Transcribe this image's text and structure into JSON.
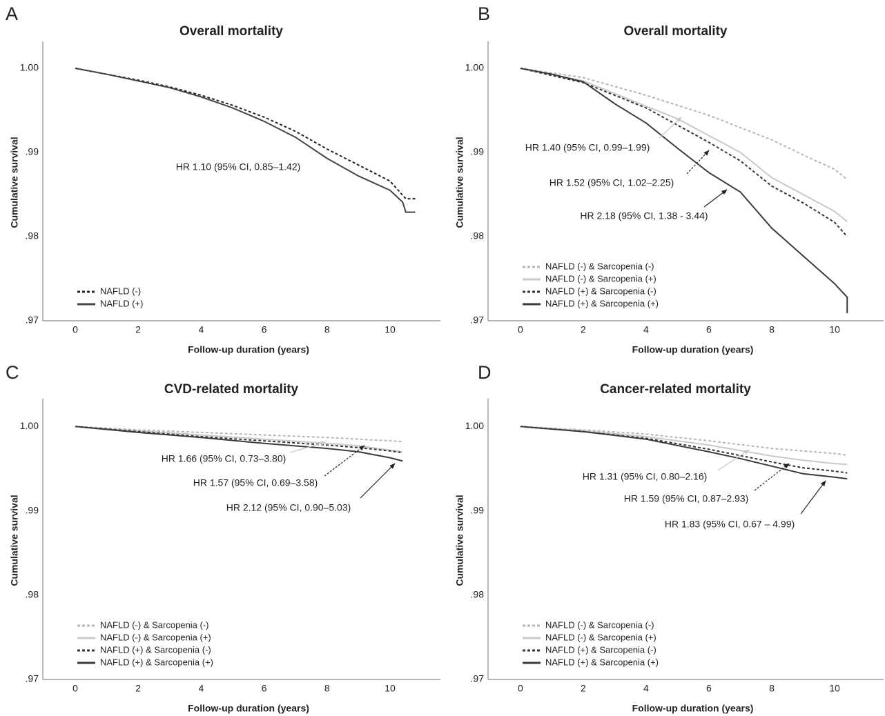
{
  "chart_data": [
    {
      "type": "line",
      "panel_label": "A",
      "title": "Overall mortality",
      "x_label": "Follow-up duration (years)",
      "y_label": "Cumulative survival",
      "xlim": [
        -1.03,
        11.6
      ],
      "ylim": [
        0.97,
        1.0032
      ],
      "xticks": [
        0,
        2,
        4,
        6,
        8,
        10
      ],
      "yticks": [
        {
          "value": 0.97,
          "label": ".97"
        },
        {
          "value": 0.98,
          "label": ".98"
        },
        {
          "value": 0.99,
          "label": ".99"
        },
        {
          "value": 1.0,
          "label": "1.00"
        }
      ],
      "legend": "lower left",
      "annotations": [
        "HR 1.10 (95% CI, 0.85–1.42)"
      ],
      "series": [
        {
          "name": "NAFLD (-)",
          "color": "#222222",
          "linestyle": "dashed",
          "x": [
            0,
            1,
            2,
            3,
            4,
            5,
            6,
            7,
            8,
            9,
            10,
            10.5,
            10.8
          ],
          "values": [
            1.0,
            0.9993,
            0.9986,
            0.9978,
            0.9968,
            0.9956,
            0.9942,
            0.9925,
            0.9904,
            0.9885,
            0.9866,
            0.9845,
            0.9845
          ]
        },
        {
          "name": "NAFLD (+)",
          "color": "#444444",
          "linestyle": "solid",
          "x": [
            0,
            1,
            2,
            3,
            4,
            5,
            6,
            7,
            8,
            9,
            10,
            10.4,
            10.5,
            10.8
          ],
          "values": [
            1.0,
            0.9993,
            0.9985,
            0.9977,
            0.9966,
            0.9953,
            0.9937,
            0.9918,
            0.9893,
            0.9872,
            0.9855,
            0.9841,
            0.9829,
            0.9829
          ]
        }
      ]
    },
    {
      "type": "line",
      "panel_label": "B",
      "title": "Overall mortality",
      "x_label": "Follow-up duration (years)",
      "y_label": "Cumulative survival",
      "xlim": [
        -1.03,
        11.56
      ],
      "ylim": [
        0.97,
        1.0032
      ],
      "xticks": [
        0,
        2,
        4,
        6,
        8,
        10
      ],
      "yticks": [
        {
          "value": 0.97,
          "label": ".97"
        },
        {
          "value": 0.98,
          "label": ".98"
        },
        {
          "value": 0.99,
          "label": ".99"
        },
        {
          "value": 1.0,
          "label": "1.00"
        }
      ],
      "legend": "lower left",
      "annotations": [
        "HR 1.40 (95% CI, 0.99–1.99)",
        "HR 1.52 (95% CI, 1.02–2.25)",
        "HR 2.18 (95% CI, 1.38 - 3.44)"
      ],
      "series": [
        {
          "name": "NAFLD (-) & Sarcopenia (-)",
          "color": "#b5b5b5",
          "linestyle": "dashed",
          "x": [
            0,
            2,
            4,
            6,
            8,
            9,
            10,
            10.4
          ],
          "values": [
            1.0,
            0.9989,
            0.9968,
            0.9944,
            0.9915,
            0.9897,
            0.988,
            0.9868
          ]
        },
        {
          "name": "NAFLD (-) & Sarcopenia (+)",
          "color": "#c8c8c8",
          "linestyle": "solid",
          "x": [
            0,
            2,
            4,
            5,
            6,
            7,
            8,
            9,
            10,
            10.4
          ],
          "values": [
            1.0,
            0.9985,
            0.9955,
            0.994,
            0.992,
            0.99,
            0.987,
            0.985,
            0.983,
            0.9818
          ]
        },
        {
          "name": "NAFLD (+) & Sarcopenia (-)",
          "color": "#333333",
          "linestyle": "dashed",
          "x": [
            0,
            2,
            4,
            6,
            7,
            8,
            9,
            10,
            10.4
          ],
          "values": [
            1.0,
            0.9983,
            0.9953,
            0.9912,
            0.989,
            0.986,
            0.984,
            0.9817,
            0.98
          ]
        },
        {
          "name": "NAFLD (+) & Sarcopenia (+)",
          "color": "#3a3a3a",
          "linestyle": "solid",
          "x": [
            0,
            1,
            2,
            3,
            4,
            5,
            6,
            7,
            8,
            9,
            10,
            10.4,
            10.4
          ],
          "values": [
            1.0,
            0.9993,
            0.9984,
            0.9958,
            0.9935,
            0.9905,
            0.9876,
            0.9853,
            0.981,
            0.9777,
            0.9744,
            0.9728,
            0.9709
          ]
        }
      ]
    },
    {
      "type": "line",
      "panel_label": "C",
      "title": "CVD-related mortality",
      "x_label": "Follow-up duration (years)",
      "y_label": "Cumulative survival",
      "xlim": [
        -1.03,
        11.6
      ],
      "ylim": [
        0.97,
        1.0033
      ],
      "xticks": [
        0,
        2,
        4,
        6,
        8,
        10
      ],
      "yticks": [
        {
          "value": 0.97,
          "label": ".97"
        },
        {
          "value": 0.98,
          "label": ".98"
        },
        {
          "value": 0.99,
          "label": ".99"
        },
        {
          "value": 1.0,
          "label": "1.00"
        }
      ],
      "legend": "lower left",
      "annotations": [
        "HR 1.66 (95% CI, 0.73–3.80)",
        "HR 1.57 (95% CI, 0.69–3.58)",
        "HR 2.12 (95% CI, 0.90–5.03)"
      ],
      "series": [
        {
          "name": "NAFLD (-) & Sarcopenia (-)",
          "color": "#b5b5b5",
          "linestyle": "dashed",
          "x": [
            0,
            2,
            4,
            6,
            8,
            9,
            10,
            10.4
          ],
          "values": [
            1.0,
            0.9996,
            0.9993,
            0.999,
            0.9987,
            0.9985,
            0.9983,
            0.9982
          ]
        },
        {
          "name": "NAFLD (-) & Sarcopenia (+)",
          "color": "#c8c8c8",
          "linestyle": "solid",
          "x": [
            0,
            2,
            4,
            6,
            8,
            9,
            10,
            10.4
          ],
          "values": [
            1.0,
            0.9995,
            0.999,
            0.9985,
            0.998,
            0.9977,
            0.9972,
            0.997
          ]
        },
        {
          "name": "NAFLD (+) & Sarcopenia (-)",
          "color": "#333333",
          "linestyle": "dashed",
          "x": [
            0,
            2,
            4,
            6,
            8,
            9,
            10,
            10.4
          ],
          "values": [
            1.0,
            0.9994,
            0.9988,
            0.9983,
            0.9978,
            0.9975,
            0.9971,
            0.9969
          ]
        },
        {
          "name": "NAFLD (+) & Sarcopenia (+)",
          "color": "#3a3a3a",
          "linestyle": "solid",
          "x": [
            0,
            2,
            4,
            6,
            8,
            9,
            10,
            10.4
          ],
          "values": [
            1.0,
            0.9993,
            0.9987,
            0.998,
            0.9974,
            0.997,
            0.9963,
            0.9959
          ]
        }
      ]
    },
    {
      "type": "line",
      "panel_label": "D",
      "title": "Cancer-related mortality",
      "x_label": "Follow-up duration (years)",
      "y_label": "Cumulative survival",
      "xlim": [
        -1.03,
        11.56
      ],
      "ylim": [
        0.97,
        1.0033
      ],
      "xticks": [
        0,
        2,
        4,
        6,
        8,
        10
      ],
      "yticks": [
        {
          "value": 0.97,
          "label": ".97"
        },
        {
          "value": 0.98,
          "label": ".98"
        },
        {
          "value": 0.99,
          "label": ".99"
        },
        {
          "value": 1.0,
          "label": "1.00"
        }
      ],
      "legend": "lower left",
      "annotations": [
        "HR 1.31 (95% CI, 0.80–2.16)",
        "HR 1.59 (95% CI, 0.87–2.93)",
        "HR 1.83 (95% CI, 0.67 – 4.99)"
      ],
      "series": [
        {
          "name": "NAFLD (-) & Sarcopenia (-)",
          "color": "#b5b5b5",
          "linestyle": "dashed",
          "x": [
            0,
            2,
            4,
            6,
            8,
            10,
            10.4
          ],
          "values": [
            1.0,
            0.9996,
            0.9991,
            0.9983,
            0.9974,
            0.9968,
            0.9966
          ]
        },
        {
          "name": "NAFLD (-) & Sarcopenia (+)",
          "color": "#c8c8c8",
          "linestyle": "solid",
          "x": [
            0,
            2,
            4,
            6,
            8,
            9,
            10,
            10.4
          ],
          "values": [
            1.0,
            0.9995,
            0.9988,
            0.9978,
            0.9965,
            0.996,
            0.9956,
            0.9955
          ]
        },
        {
          "name": "NAFLD (+) & Sarcopenia (-)",
          "color": "#333333",
          "linestyle": "dashed",
          "x": [
            0,
            2,
            4,
            6,
            8,
            9,
            10,
            10.4
          ],
          "values": [
            1.0,
            0.9994,
            0.9986,
            0.9973,
            0.9958,
            0.9951,
            0.9947,
            0.9945
          ]
        },
        {
          "name": "NAFLD (+) & Sarcopenia (+)",
          "color": "#3a3a3a",
          "linestyle": "solid",
          "x": [
            0,
            2,
            4,
            6,
            7,
            8,
            9,
            10,
            10.4
          ],
          "values": [
            1.0,
            0.9994,
            0.9985,
            0.997,
            0.9962,
            0.9953,
            0.9944,
            0.994,
            0.9938
          ]
        }
      ]
    }
  ]
}
